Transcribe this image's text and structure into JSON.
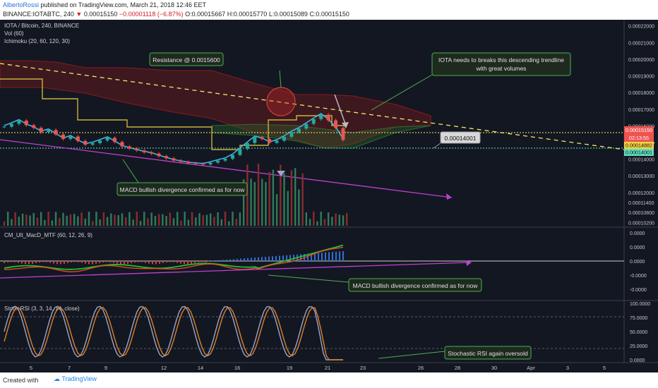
{
  "header": {
    "author": "AlbertoRossi",
    "published": "published on TradingView.com, March 21, 2018 12:46 EET",
    "symbol_line": "BINANCE:IOTABTC, 240",
    "price": "0.00015150",
    "change": "−0.00001118 (−6.87%)",
    "ohlc_O": "O:0.00015667",
    "ohlc_H": "H:0.00015770",
    "ohlc_L": "L:0.00015089",
    "ohlc_C": "C:0.00015150"
  },
  "legends": {
    "main_title": "IOTA / Bitcoin, 240, BINANCE",
    "vol": "Vol (60)",
    "ichimoku": "Ichimoku (20, 60, 120, 30)",
    "macd": "CM_Ult_MacD_MTF (60, 12, 26, 9)",
    "stoch": "Stoch RSI (3, 3, 14, 14, close)"
  },
  "annotations": {
    "resistance": "Resistance @ 0.0015600",
    "trendline_line1": "IOTA needs to breaks this descending trendline",
    "trendline_line2": "with great volumes",
    "level": "0.00014001",
    "macd_div_main": "MACD bullish divergence confirmed as for now",
    "macd_div_panel": "MACD bullish divergence confirmed as for now",
    "stoch_oversold": "Stochastic RSI again oversold"
  },
  "price_labels": {
    "current": "0.00015150",
    "countdown": "02:13:55",
    "level_a": "0.00014882",
    "level_b": "0.00014001"
  },
  "footer": {
    "created_with": "Created with",
    "brand": "TradingView"
  },
  "colors": {
    "background": "#131722",
    "candle_up": "#26a69a",
    "candle_down": "#ef5350",
    "cloud_red": "#8b1a1a",
    "cloud_green": "#2e6b2e",
    "trendline": "#f5e96b",
    "purple": "#c040d0",
    "annotation_border": "#4caf50",
    "annotation_bg": "#1e2a1e"
  },
  "chart_data": [
    {
      "type": "candlestick",
      "title": "IOTA / Bitcoin, 240, BINANCE",
      "x_ticks": [
        "5",
        "7",
        "9",
        "12",
        "14",
        "16",
        "19",
        "21",
        "23",
        "26",
        "28",
        "30",
        "Apr",
        "3",
        "5"
      ],
      "y_ticks": [
        "0.00022000",
        "0.00021000",
        "0.00020000",
        "0.00019000",
        "0.00018000",
        "0.00017000",
        "0.00016000",
        "0.00015000",
        "0.00014000",
        "0.00013000",
        "0.00012000",
        "0.00011400",
        "0.00010800",
        "0.00010200"
      ],
      "ylim": [
        0.0001,
        0.000222
      ],
      "close_series": [
        0.0001595,
        0.0001612,
        0.0001631,
        0.0001604,
        0.0001588,
        0.0001562,
        0.0001575,
        0.0001548,
        0.0001521,
        0.0001536,
        0.0001509,
        0.0001487,
        0.0001496,
        0.0001512,
        0.0001528,
        0.0001503,
        0.0001476,
        0.0001463,
        0.0001452,
        0.0001441,
        0.0001433,
        0.0001418,
        0.0001405,
        0.0001392,
        0.0001384,
        0.0001376,
        0.0001372,
        0.0001368,
        0.0001379,
        0.0001391,
        0.0001402,
        0.0001425,
        0.0001461,
        0.0001497,
        0.0001532,
        0.0001521,
        0.0001498,
        0.0001511,
        0.0001534,
        0.0001562,
        0.0001583,
        0.0001612,
        0.000164,
        0.0001667,
        0.0001633,
        0.0001587,
        0.0001515
      ],
      "levels": [
        0.0001515,
        0.00014882,
        0.00014001
      ]
    },
    {
      "type": "bar",
      "title": "Vol (60)"
    },
    {
      "type": "line",
      "title": "CM_Ult_MacD_MTF (60, 12, 26, 9)",
      "y_ticks": [
        "0.0000",
        "0.0000",
        "0.0000",
        "-0.0000",
        "-0.0000"
      ]
    },
    {
      "type": "line",
      "title": "Stoch RSI (3, 3, 14, 14, close)",
      "y_ticks": [
        "100.0000",
        "75.0000",
        "50.0000",
        "25.0000",
        "0.0000"
      ],
      "ylim": [
        0,
        100
      ]
    }
  ]
}
